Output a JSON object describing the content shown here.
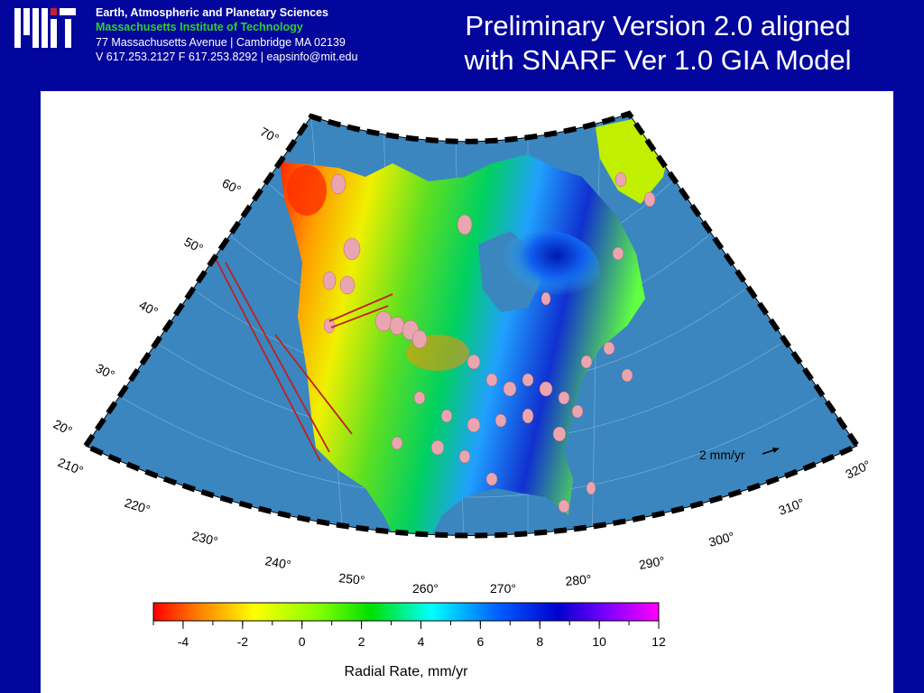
{
  "header": {
    "logo_text": "MIT",
    "institution": {
      "department": "Earth, Atmospheric and Planetary Sciences",
      "name": "Massachusetts Institute of Technology",
      "address": "77 Massachusetts Avenue | Cambridge MA 02139",
      "contact": "V 617.253.2127 F 617.253.8292 | eapsinfo@mit.edu"
    },
    "title_line1": "Preliminary Version 2.0 aligned",
    "title_line2": "with SNARF Ver 1.0 GIA Model"
  },
  "map": {
    "latitude_labels": [
      "70°",
      "60°",
      "50°",
      "40°",
      "30°",
      "20°"
    ],
    "longitude_labels": [
      "210°",
      "220°",
      "230°",
      "240°",
      "250°",
      "260°",
      "270°",
      "280°",
      "290°",
      "300°",
      "310°",
      "320°"
    ],
    "velocity_scale_label": "2 mm/yr",
    "ocean_color": "#3b86bf",
    "border_color": "#000000"
  },
  "colorbar": {
    "ticks": [
      "-4",
      "-2",
      "0",
      "2",
      "4",
      "6",
      "8",
      "10",
      "12"
    ],
    "range": [
      -5,
      12
    ],
    "label": "Radial Rate, mm/yr",
    "colors": [
      "#ff0000",
      "#ff8000",
      "#ffff00",
      "#80ff00",
      "#00e000",
      "#00ffff",
      "#0060ff",
      "#0000d0",
      "#8000ff",
      "#ff00ff"
    ]
  }
}
